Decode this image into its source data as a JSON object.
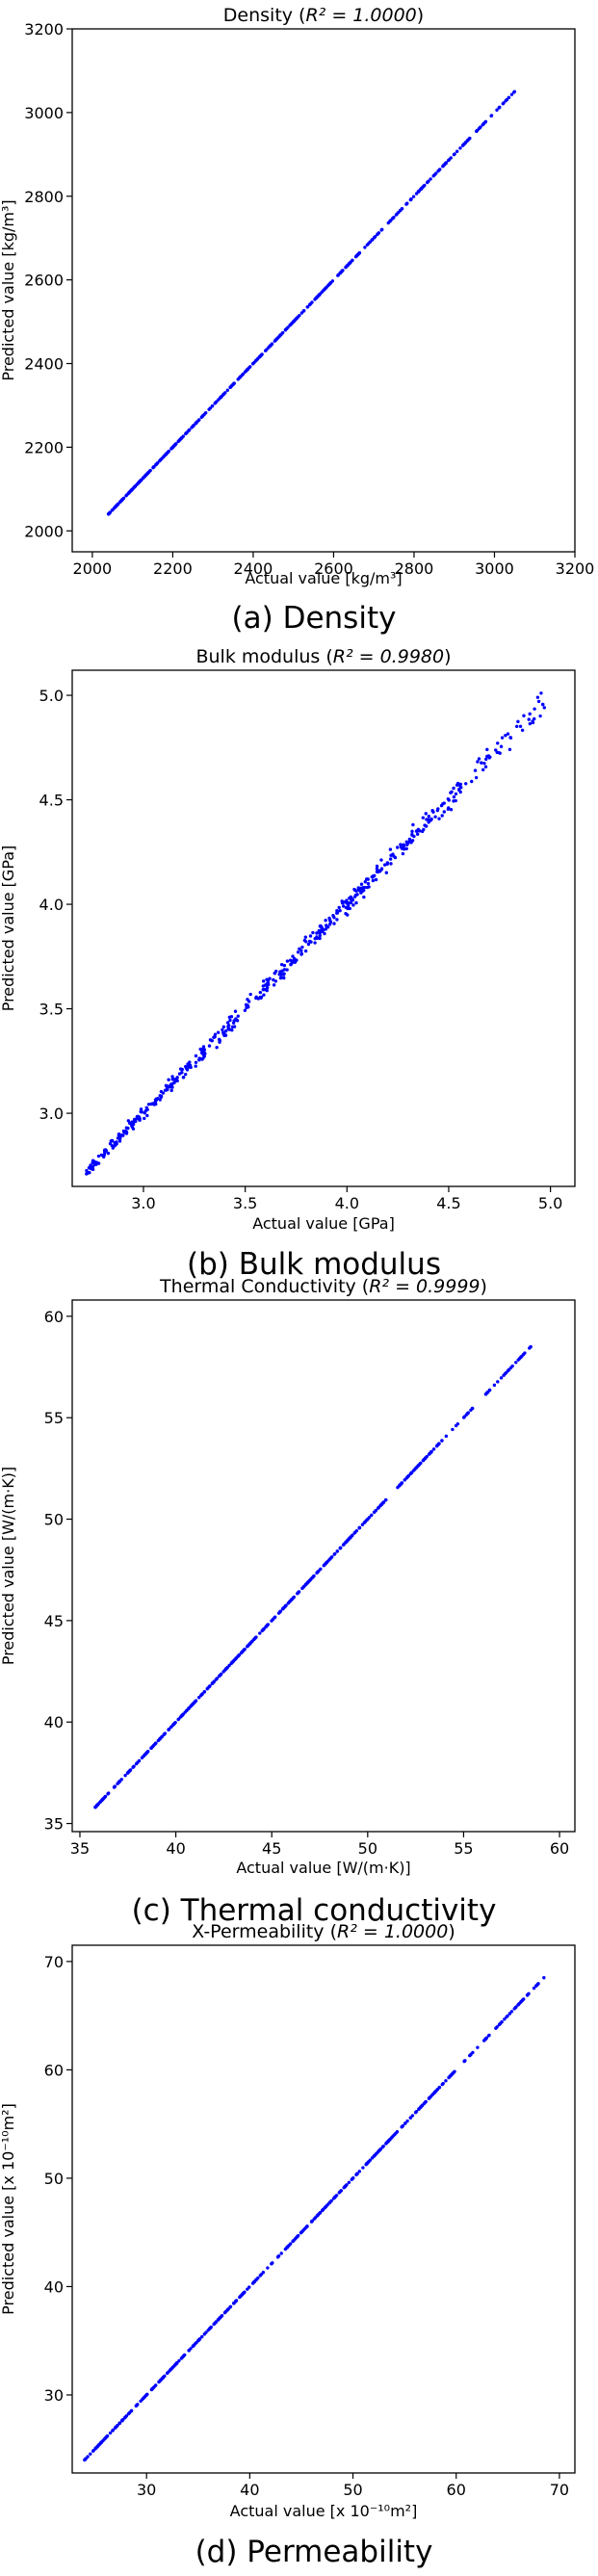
{
  "figure": {
    "colors": {
      "points": "#0000ff",
      "axes": "#000000",
      "background": "#ffffff"
    }
  },
  "chart_data": [
    {
      "type": "scatter",
      "panel": "density",
      "title_main": "Density (",
      "title_r2": "R² = 1.0000",
      "title_end": ")",
      "xlabel": "Actual value [kg/m³]",
      "ylabel": "Predicted value [kg/m³]",
      "caption": "(a) Density",
      "xlim": [
        1950,
        3200
      ],
      "ylim": [
        1950,
        3200
      ],
      "xticks": [
        2000,
        2200,
        2400,
        2600,
        2800,
        3000,
        3200
      ],
      "yticks": [
        2000,
        2200,
        2400,
        2600,
        2800,
        3000,
        3200
      ],
      "tick_decimals": 0,
      "range": [
        2040,
        3050
      ],
      "scatter": 0.0,
      "n_points": 420,
      "tail_start": 2880,
      "grid": false,
      "legend": "none"
    },
    {
      "type": "scatter",
      "panel": "bulk-modulus",
      "title_main": "Bulk modulus (",
      "title_r2": "R² = 0.9980",
      "title_end": ")",
      "xlabel": "Actual value [GPa]",
      "ylabel": "Predicted value [GPa]",
      "caption": "(b) Bulk modulus",
      "xlim": [
        2.65,
        5.12
      ],
      "ylim": [
        2.65,
        5.12
      ],
      "xticks": [
        3.0,
        3.5,
        4.0,
        4.5,
        5.0
      ],
      "yticks": [
        3.0,
        3.5,
        4.0,
        4.5,
        5.0
      ],
      "tick_decimals": 1,
      "range": [
        2.72,
        4.97
      ],
      "scatter": 0.025,
      "n_points": 520,
      "tail_start": 4.55,
      "grid": false,
      "legend": "none"
    },
    {
      "type": "scatter",
      "panel": "thermal-conductivity",
      "title_main": "Thermal Conductivity (",
      "title_r2": "R² = 0.9999",
      "title_end": ")",
      "xlabel": "Actual value [W/(m·K)]",
      "ylabel": "Predicted value [W/(m·K)]",
      "caption": "(c) Thermal conductivity",
      "xlim": [
        34.6,
        60.8
      ],
      "ylim": [
        34.6,
        60.8
      ],
      "xticks": [
        35,
        40,
        45,
        50,
        55,
        60
      ],
      "yticks": [
        35,
        40,
        45,
        50,
        55,
        60
      ],
      "tick_decimals": 0,
      "range": [
        35.8,
        58.5
      ],
      "scatter": 0.0,
      "n_points": 420,
      "tail_start": 54.0,
      "grid": false,
      "legend": "none"
    },
    {
      "type": "scatter",
      "panel": "x-permeability",
      "title_main": "X-Permeability (",
      "title_r2": "R² = 1.0000",
      "title_end": ")",
      "xlabel": "Actual value [x 10⁻¹⁰m²]",
      "ylabel": "Predicted value [x 10⁻¹⁰m²]",
      "caption": "(d) Permeability",
      "xlim": [
        22.8,
        71.5
      ],
      "ylim": [
        22.8,
        71.5
      ],
      "xticks": [
        30,
        40,
        50,
        60,
        70
      ],
      "yticks": [
        30,
        40,
        50,
        60,
        70
      ],
      "tick_decimals": 0,
      "range": [
        24.0,
        68.5
      ],
      "scatter": 0.0,
      "n_points": 420,
      "tail_start": 62.0,
      "grid": false,
      "legend": "none"
    }
  ]
}
